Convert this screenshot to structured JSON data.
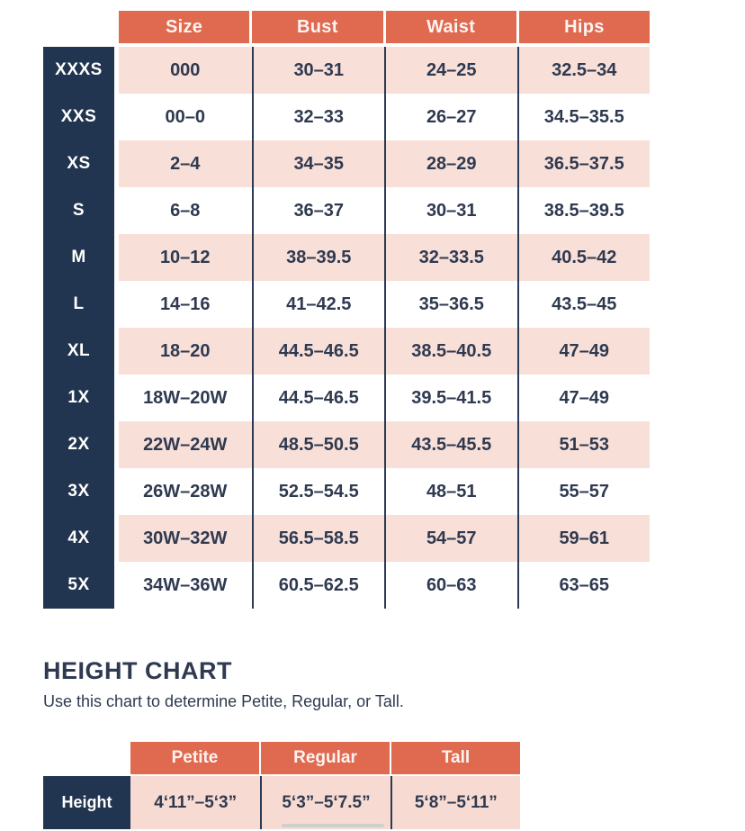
{
  "chart_data": [
    {
      "type": "table",
      "name": "size-chart",
      "columns": [
        "Size",
        "Bust",
        "Waist",
        "Hips"
      ],
      "rows": [
        {
          "label": "XXXS",
          "values": [
            "000",
            "30–31",
            "24–25",
            "32.5–34"
          ]
        },
        {
          "label": "XXS",
          "values": [
            "00–0",
            "32–33",
            "26–27",
            "34.5–35.5"
          ]
        },
        {
          "label": "XS",
          "values": [
            "2–4",
            "34–35",
            "28–29",
            "36.5–37.5"
          ]
        },
        {
          "label": "S",
          "values": [
            "6–8",
            "36–37",
            "30–31",
            "38.5–39.5"
          ]
        },
        {
          "label": "M",
          "values": [
            "10–12",
            "38–39.5",
            "32–33.5",
            "40.5–42"
          ]
        },
        {
          "label": "L",
          "values": [
            "14–16",
            "41–42.5",
            "35–36.5",
            "43.5–45"
          ]
        },
        {
          "label": "XL",
          "values": [
            "18–20",
            "44.5–46.5",
            "38.5–40.5",
            "47–49"
          ]
        },
        {
          "label": "1X",
          "values": [
            "18W–20W",
            "44.5–46.5",
            "39.5–41.5",
            "47–49"
          ]
        },
        {
          "label": "2X",
          "values": [
            "22W–24W",
            "48.5–50.5",
            "43.5–45.5",
            "51–53"
          ]
        },
        {
          "label": "3X",
          "values": [
            "26W–28W",
            "52.5–54.5",
            "48–51",
            "55–57"
          ]
        },
        {
          "label": "4X",
          "values": [
            "30W–32W",
            "56.5–58.5",
            "54–57",
            "59–61"
          ]
        },
        {
          "label": "5X",
          "values": [
            "34W–36W",
            "60.5–62.5",
            "60–63",
            "63–65"
          ]
        }
      ]
    },
    {
      "type": "table",
      "name": "height-chart",
      "title": "HEIGHT CHART",
      "subtitle": "Use this chart to determine Petite, Regular, or Tall.",
      "columns": [
        "Petite",
        "Regular",
        "Tall"
      ],
      "row_label": "Height",
      "values": [
        "4‘11”–5‘3”",
        "5‘3”–5‘7.5”",
        "5‘8”–5‘11”"
      ]
    }
  ],
  "colors": {
    "coral": "#E06A50",
    "navy": "#213450",
    "row_pink": "#F8DFD8",
    "height_pink": "#F7DBD2",
    "text": "#2F3A50",
    "divider": "#2B3B55",
    "header_text": "#FCF4F1"
  }
}
